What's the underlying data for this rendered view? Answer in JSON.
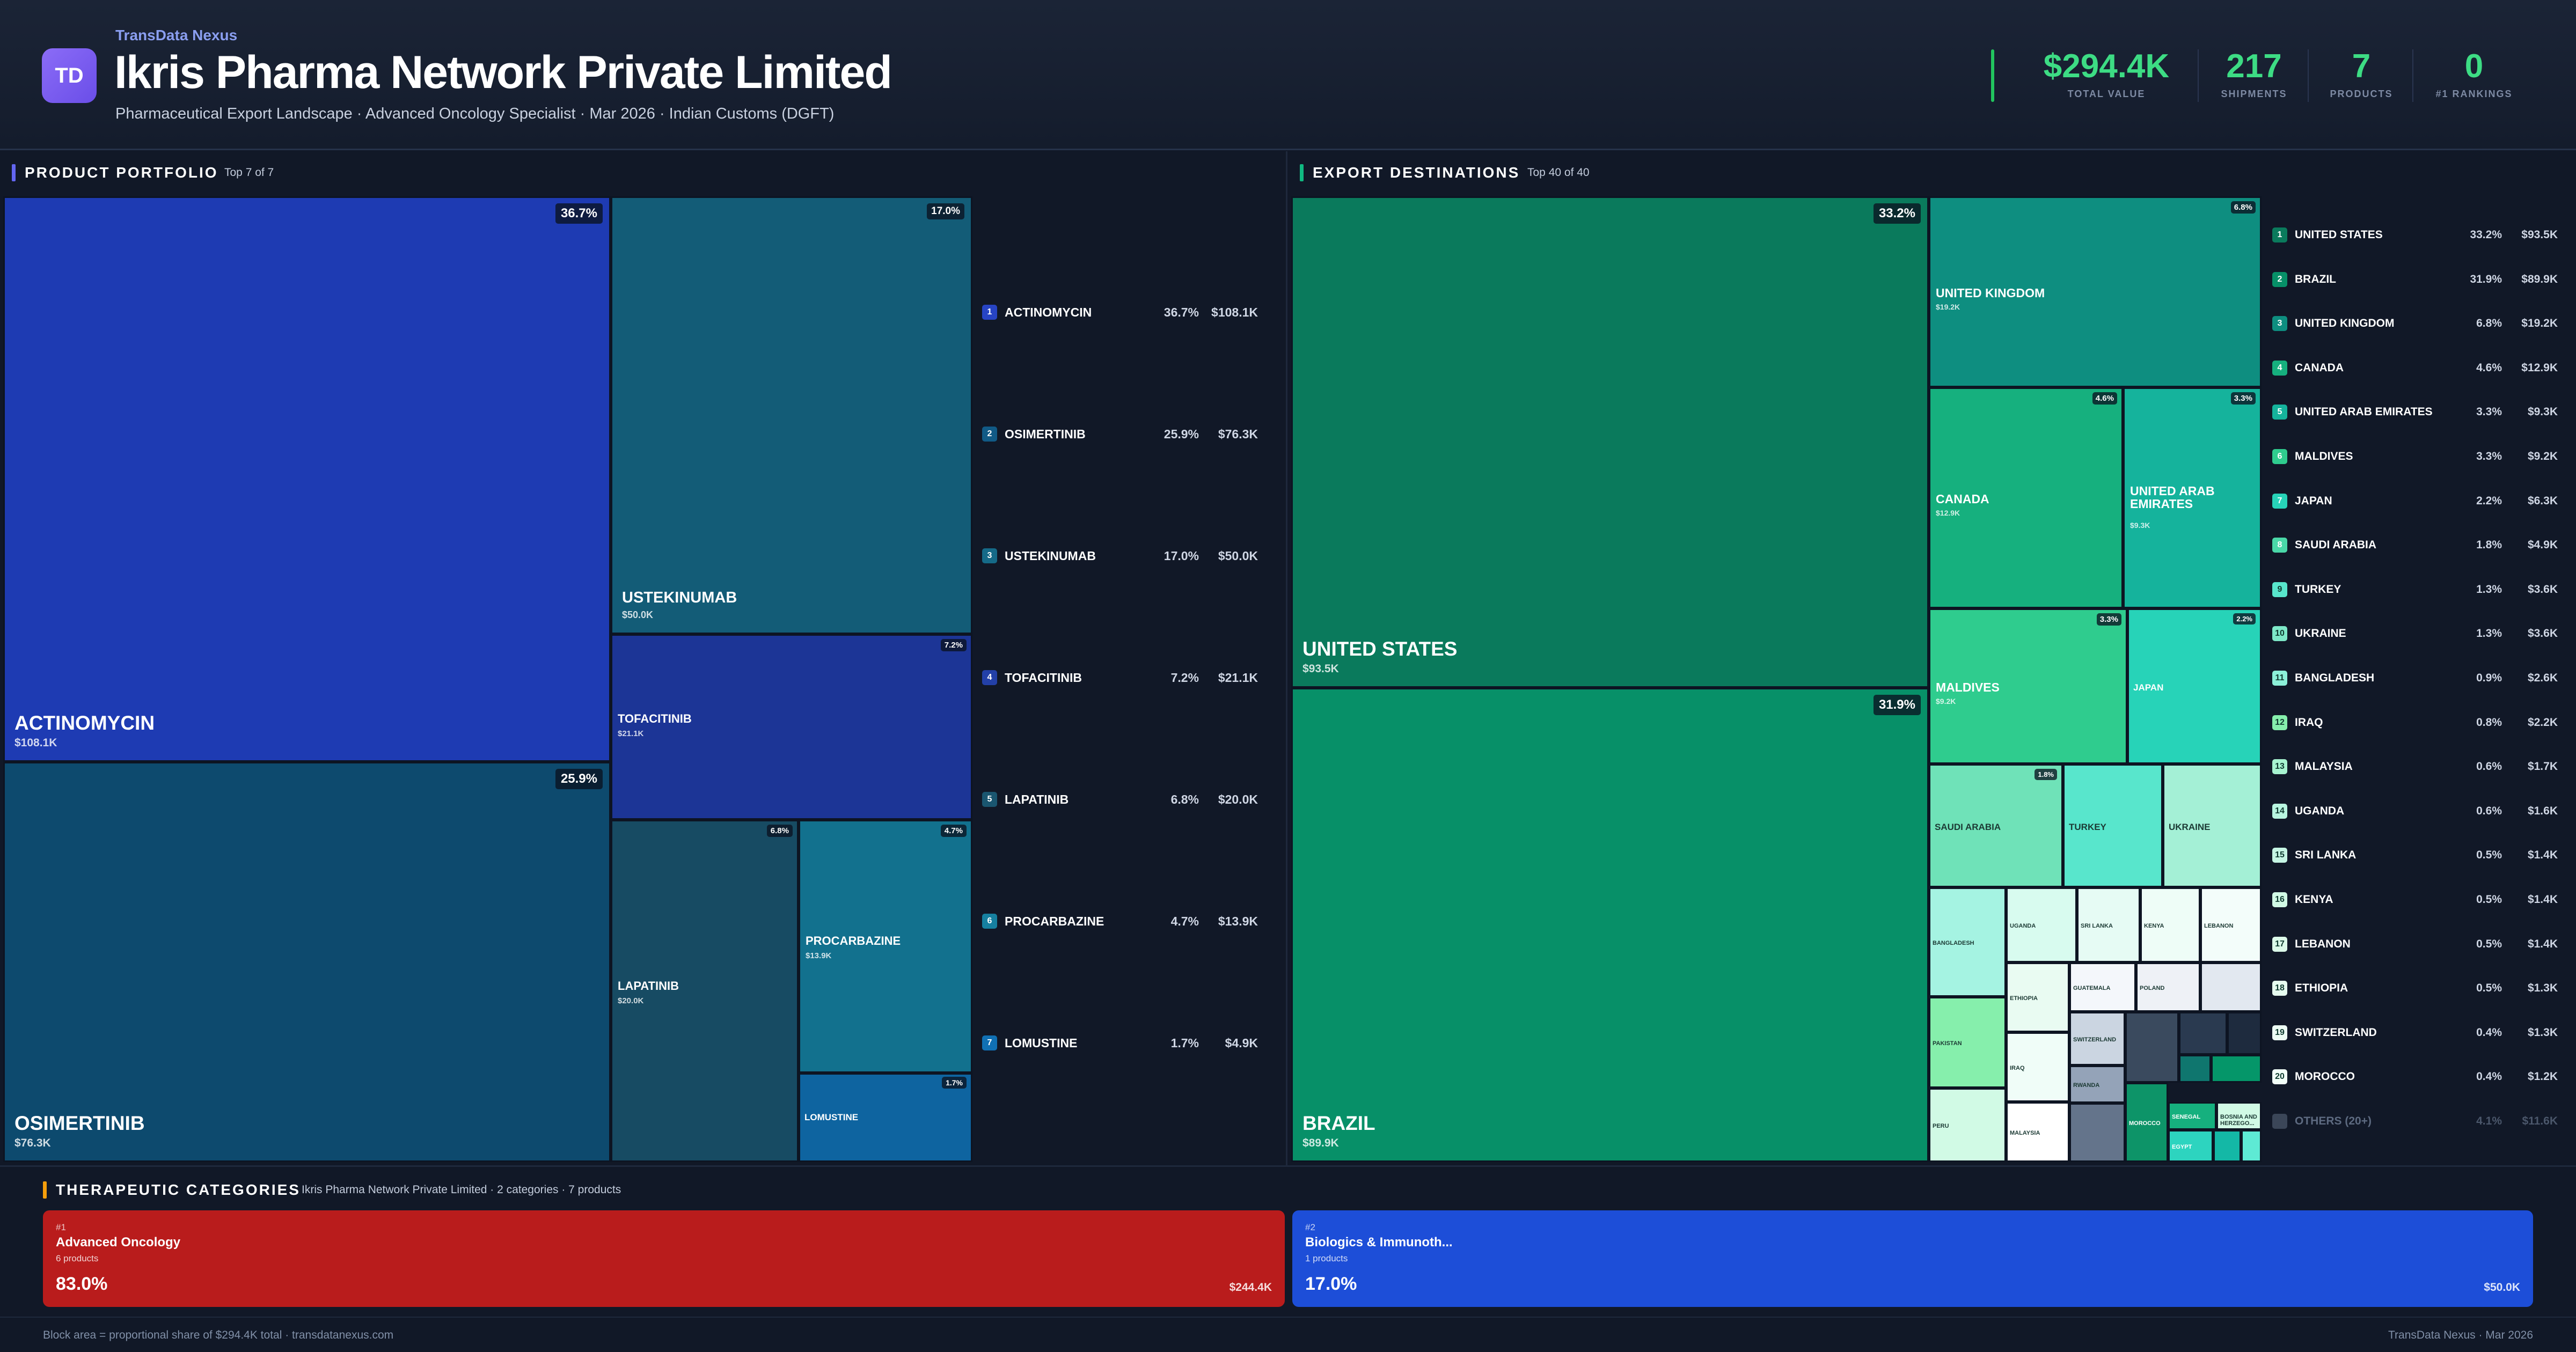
{
  "header": {
    "logo_text": "TD",
    "brand": "TransData Nexus",
    "title": "Ikris Pharma Network Private Limited",
    "subtitle": "Pharmaceutical Export Landscape · Advanced Oncology Specialist · Mar 2026 · Indian Customs (DGFT)",
    "stats": [
      {
        "value": "$294.4K",
        "label": "TOTAL VALUE"
      },
      {
        "value": "217",
        "label": "SHIPMENTS"
      },
      {
        "value": "7",
        "label": "PRODUCTS"
      },
      {
        "value": "0",
        "label": "#1 RANKINGS"
      }
    ]
  },
  "portfolio": {
    "title": "PRODUCT PORTFOLIO",
    "subtitle": "Top 7 of 7",
    "tiles": [
      {
        "name": "ACTINOMYCIN",
        "value": "$108.1K",
        "pct": "36.7%",
        "color": "#1e3bb3"
      },
      {
        "name": "OSIMERTINIB",
        "value": "$76.3K",
        "pct": "25.9%",
        "color": "#0d4a6e"
      },
      {
        "name": "USTEKINUMAB",
        "value": "$50.0K",
        "pct": "17.0%",
        "color": "#135c77"
      },
      {
        "name": "TOFACITINIB",
        "value": "$21.1K",
        "pct": "7.2%",
        "color": "#1c3596"
      },
      {
        "name": "LAPATINIB",
        "value": "$20.0K",
        "pct": "6.8%",
        "color": "#174b63"
      },
      {
        "name": "PROCARBAZINE",
        "value": "$13.9K",
        "pct": "4.7%",
        "color": "#12718e"
      },
      {
        "name": "LOMUSTINE",
        "value": "",
        "pct": "1.7%",
        "color": "#0e64a0"
      }
    ],
    "list": [
      {
        "rank": "1",
        "name": "ACTINOMYCIN",
        "pct": "36.7%",
        "value": "$108.1K",
        "color": "#2744c4"
      },
      {
        "rank": "2",
        "name": "OSIMERTINIB",
        "pct": "25.9%",
        "value": "$76.3K",
        "color": "#115a86"
      },
      {
        "rank": "3",
        "name": "USTEKINUMAB",
        "pct": "17.0%",
        "value": "$50.0K",
        "color": "#156a88"
      },
      {
        "rank": "4",
        "name": "TOFACITINIB",
        "pct": "7.2%",
        "value": "$21.1K",
        "color": "#2340a8"
      },
      {
        "rank": "5",
        "name": "LAPATINIB",
        "pct": "6.8%",
        "value": "$20.0K",
        "color": "#1a5670"
      },
      {
        "rank": "6",
        "name": "PROCARBAZINE",
        "pct": "4.7%",
        "value": "$13.9K",
        "color": "#1680a0"
      },
      {
        "rank": "7",
        "name": "LOMUSTINE",
        "pct": "1.7%",
        "value": "$4.9K",
        "color": "#1070b4"
      }
    ]
  },
  "destinations": {
    "title": "EXPORT DESTINATIONS",
    "subtitle": "Top 40 of 40",
    "tiles": [
      {
        "name": "UNITED STATES",
        "value": "$93.5K",
        "pct": "33.2%"
      },
      {
        "name": "BRAZIL",
        "value": "$89.9K",
        "pct": "31.9%"
      },
      {
        "name": "UNITED KINGDOM",
        "value": "$19.2K",
        "pct": "6.8%"
      },
      {
        "name": "CANADA",
        "value": "$12.9K",
        "pct": "4.6%"
      },
      {
        "name": "UNITED ARAB EMIRATES",
        "value": "$9.3K",
        "pct": "3.3%"
      },
      {
        "name": "MALDIVES",
        "value": "$9.2K",
        "pct": "3.3%"
      },
      {
        "name": "JAPAN",
        "value": "",
        "pct": "2.2%"
      },
      {
        "name": "SAUDI ARABIA",
        "value": "",
        "pct": "1.8%"
      },
      {
        "name": "TURKEY",
        "value": "",
        "pct": ""
      },
      {
        "name": "UKRAINE",
        "value": "",
        "pct": ""
      },
      {
        "name": "BANGLADESH",
        "value": "",
        "pct": ""
      },
      {
        "name": "UGANDA",
        "value": "",
        "pct": ""
      },
      {
        "name": "SRI LANKA",
        "value": "",
        "pct": ""
      },
      {
        "name": "KENYA",
        "value": "",
        "pct": ""
      },
      {
        "name": "LEBANON",
        "value": "",
        "pct": ""
      },
      {
        "name": "ETHIOPIA",
        "value": "",
        "pct": ""
      },
      {
        "name": "GUATEMALA",
        "value": "",
        "pct": ""
      },
      {
        "name": "POLAND",
        "value": "",
        "pct": ""
      },
      {
        "name": "PAKISTAN",
        "value": "",
        "pct": ""
      },
      {
        "name": "IRAQ",
        "value": "",
        "pct": ""
      },
      {
        "name": "SWITZERLAND",
        "value": "",
        "pct": ""
      },
      {
        "name": "RWANDA",
        "value": "",
        "pct": ""
      },
      {
        "name": "PERU",
        "value": "",
        "pct": ""
      },
      {
        "name": "MALAYSIA",
        "value": "",
        "pct": ""
      },
      {
        "name": "MOROCCO",
        "value": "",
        "pct": ""
      },
      {
        "name": "SENEGAL",
        "value": "",
        "pct": ""
      },
      {
        "name": "BOSNIA AND HERZEGO...",
        "value": "",
        "pct": ""
      },
      {
        "name": "EGYPT",
        "value": "",
        "pct": ""
      }
    ],
    "list": [
      {
        "rank": "1",
        "name": "UNITED STATES",
        "pct": "33.2%",
        "value": "$93.5K"
      },
      {
        "rank": "2",
        "name": "BRAZIL",
        "pct": "31.9%",
        "value": "$89.9K"
      },
      {
        "rank": "3",
        "name": "UNITED KINGDOM",
        "pct": "6.8%",
        "value": "$19.2K"
      },
      {
        "rank": "4",
        "name": "CANADA",
        "pct": "4.6%",
        "value": "$12.9K"
      },
      {
        "rank": "5",
        "name": "UNITED ARAB EMIRATES",
        "pct": "3.3%",
        "value": "$9.3K"
      },
      {
        "rank": "6",
        "name": "MALDIVES",
        "pct": "3.3%",
        "value": "$9.2K"
      },
      {
        "rank": "7",
        "name": "JAPAN",
        "pct": "2.2%",
        "value": "$6.3K"
      },
      {
        "rank": "8",
        "name": "SAUDI ARABIA",
        "pct": "1.8%",
        "value": "$4.9K"
      },
      {
        "rank": "9",
        "name": "TURKEY",
        "pct": "1.3%",
        "value": "$3.6K"
      },
      {
        "rank": "10",
        "name": "UKRAINE",
        "pct": "1.3%",
        "value": "$3.6K"
      },
      {
        "rank": "11",
        "name": "BANGLADESH",
        "pct": "0.9%",
        "value": "$2.6K"
      },
      {
        "rank": "12",
        "name": "IRAQ",
        "pct": "0.8%",
        "value": "$2.2K"
      },
      {
        "rank": "13",
        "name": "MALAYSIA",
        "pct": "0.6%",
        "value": "$1.7K"
      },
      {
        "rank": "14",
        "name": "UGANDA",
        "pct": "0.6%",
        "value": "$1.6K"
      },
      {
        "rank": "15",
        "name": "SRI LANKA",
        "pct": "0.5%",
        "value": "$1.4K"
      },
      {
        "rank": "16",
        "name": "KENYA",
        "pct": "0.5%",
        "value": "$1.4K"
      },
      {
        "rank": "17",
        "name": "LEBANON",
        "pct": "0.5%",
        "value": "$1.4K"
      },
      {
        "rank": "18",
        "name": "ETHIOPIA",
        "pct": "0.5%",
        "value": "$1.3K"
      },
      {
        "rank": "19",
        "name": "SWITZERLAND",
        "pct": "0.4%",
        "value": "$1.3K"
      },
      {
        "rank": "20",
        "name": "MOROCCO",
        "pct": "0.4%",
        "value": "$1.2K"
      },
      {
        "rank": "",
        "name": "OTHERS (20+)",
        "pct": "4.1%",
        "value": "$11.6K"
      }
    ]
  },
  "categories": {
    "title": "THERAPEUTIC CATEGORIES",
    "subtitle": "Ikris Pharma Network Private Limited · 2 categories · 7 products",
    "items": [
      {
        "rank": "#1",
        "name": "Advanced Oncology",
        "count": "6 products",
        "pct": "83.0%",
        "value": "$244.4K",
        "color": "#b91c1c"
      },
      {
        "rank": "#2",
        "name": "Biologics & Immunoth...",
        "count": "1 products",
        "pct": "17.0%",
        "value": "$50.0K",
        "color": "#1d4ed8"
      }
    ]
  },
  "footer": {
    "left": "Block area = proportional share of $294.4K total · transdatanexus.com",
    "right": "TransData Nexus · Mar 2026"
  }
}
